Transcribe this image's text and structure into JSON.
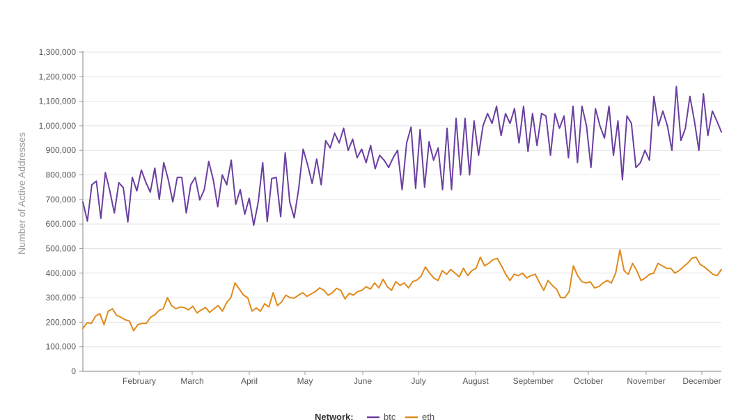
{
  "chart_data": {
    "type": "line",
    "title": "",
    "xlabel": "",
    "ylabel": "Number of Active Addresses",
    "ylim": [
      0,
      1300000
    ],
    "y_ticks": [
      0,
      100000,
      200000,
      300000,
      400000,
      500000,
      600000,
      700000,
      800000,
      900000,
      1000000,
      1100000,
      1200000,
      1300000
    ],
    "y_tick_labels": [
      "0",
      "100,000",
      "200,000",
      "300,000",
      "400,000",
      "500,000",
      "600,000",
      "700,000",
      "800,000",
      "900,000",
      "1,000,000",
      "1,100,000",
      "1,200,000",
      "1,300,000"
    ],
    "x_tick_labels": [
      "February",
      "March",
      "April",
      "May",
      "June",
      "July",
      "August",
      "September",
      "October",
      "November",
      "December"
    ],
    "grid": true,
    "legend_position": "bottom",
    "legend_title": "Network:",
    "series": [
      {
        "name": "btc",
        "color": "#6a3fa0",
        "values": [
          690000,
          612000,
          760000,
          775000,
          623000,
          810000,
          735000,
          645000,
          768000,
          748000,
          608000,
          790000,
          735000,
          820000,
          770000,
          730000,
          828000,
          700000,
          850000,
          780000,
          690000,
          790000,
          790000,
          645000,
          760000,
          790000,
          698000,
          740000,
          855000,
          780000,
          670000,
          800000,
          760000,
          860000,
          680000,
          740000,
          640000,
          705000,
          595000,
          690000,
          850000,
          610000,
          785000,
          790000,
          630000,
          890000,
          690000,
          625000,
          745000,
          905000,
          840000,
          765000,
          865000,
          760000,
          940000,
          910000,
          970000,
          930000,
          990000,
          900000,
          945000,
          870000,
          905000,
          850000,
          920000,
          825000,
          880000,
          860000,
          830000,
          870000,
          900000,
          740000,
          930000,
          995000,
          745000,
          985000,
          750000,
          935000,
          860000,
          910000,
          740000,
          990000,
          740000,
          1030000,
          800000,
          1030000,
          800000,
          1020000,
          880000,
          1000000,
          1050000,
          1010000,
          1080000,
          960000,
          1050000,
          1010000,
          1070000,
          930000,
          1080000,
          895000,
          1050000,
          920000,
          1050000,
          1040000,
          880000,
          1050000,
          990000,
          1040000,
          870000,
          1080000,
          850000,
          1080000,
          1000000,
          830000,
          1070000,
          1000000,
          950000,
          1080000,
          880000,
          1020000,
          780000,
          1040000,
          1010000,
          830000,
          850000,
          900000,
          860000,
          1120000,
          1000000,
          1060000,
          1000000,
          900000,
          1160000,
          940000,
          990000,
          1120000,
          1020000,
          900000,
          1130000,
          960000,
          1060000,
          1020000,
          975000
        ],
        "points_note": "",
        "_x_unit": "year_fraction"
      },
      {
        "name": "eth",
        "color": "#e08a1a",
        "values": [
          175000,
          198000,
          195000,
          225000,
          235000,
          190000,
          245000,
          255000,
          228000,
          220000,
          210000,
          205000,
          165000,
          190000,
          195000,
          195000,
          220000,
          230000,
          248000,
          255000,
          300000,
          268000,
          255000,
          262000,
          260000,
          250000,
          265000,
          238000,
          250000,
          260000,
          240000,
          255000,
          268000,
          245000,
          280000,
          300000,
          360000,
          335000,
          310000,
          300000,
          245000,
          258000,
          245000,
          275000,
          262000,
          320000,
          268000,
          282000,
          310000,
          300000,
          298000,
          310000,
          320000,
          305000,
          315000,
          325000,
          340000,
          330000,
          310000,
          320000,
          338000,
          330000,
          295000,
          318000,
          310000,
          325000,
          330000,
          345000,
          335000,
          360000,
          340000,
          375000,
          345000,
          330000,
          365000,
          350000,
          360000,
          340000,
          365000,
          372000,
          388000,
          425000,
          400000,
          380000,
          370000,
          410000,
          395000,
          415000,
          400000,
          385000,
          420000,
          390000,
          410000,
          420000,
          465000,
          430000,
          440000,
          455000,
          460000,
          430000,
          395000,
          370000,
          395000,
          390000,
          400000,
          380000,
          390000,
          395000,
          360000,
          330000,
          370000,
          350000,
          335000,
          300000,
          300000,
          325000,
          430000,
          390000,
          365000,
          360000,
          365000,
          340000,
          345000,
          360000,
          370000,
          360000,
          400000,
          495000,
          410000,
          395000,
          440000,
          410000,
          370000,
          380000,
          395000,
          400000,
          440000,
          430000,
          420000,
          420000,
          400000,
          410000,
          425000,
          440000,
          460000,
          465000,
          435000,
          425000,
          410000,
          395000,
          390000,
          415000
        ]
      }
    ]
  },
  "title_text": ""
}
